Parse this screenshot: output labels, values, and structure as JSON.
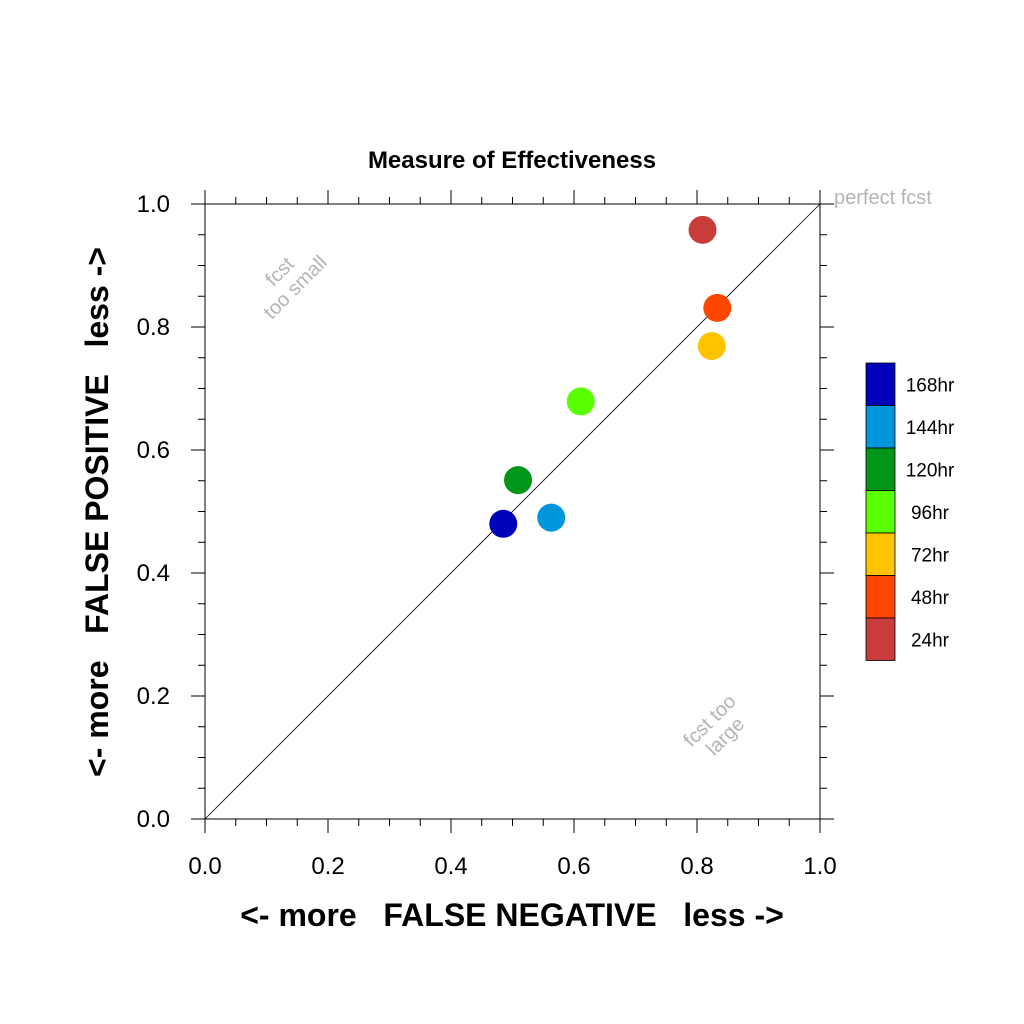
{
  "chart_data": {
    "type": "scatter",
    "title": "Measure of Effectiveness",
    "xlabel": "<- more   FALSE NEGATIVE   less ->",
    "ylabel": "<- more   FALSE POSITIVE   less ->",
    "xlim": [
      0.0,
      1.0
    ],
    "ylim": [
      0.0,
      1.0
    ],
    "xticks": [
      "0.0",
      "0.2",
      "0.4",
      "0.6",
      "0.8",
      "1.0"
    ],
    "yticks": [
      "0.0",
      "0.2",
      "0.4",
      "0.6",
      "0.8",
      "1.0"
    ],
    "grid": false,
    "reference_line": {
      "from": [
        0.0,
        0.0
      ],
      "to": [
        1.0,
        1.0
      ]
    },
    "annotations": {
      "perfect": "perfect fcst",
      "small_line1": "fcst",
      "small_line2": "too small",
      "large_line1": "fcst too",
      "large_line2": "large"
    },
    "legend_position": "right",
    "series": [
      {
        "name": "168hr",
        "color": "#0000bb",
        "x": 0.485,
        "y": 0.48
      },
      {
        "name": "144hr",
        "color": "#0096dc",
        "x": 0.563,
        "y": 0.49
      },
      {
        "name": "120hr",
        "color": "#009619",
        "x": 0.509,
        "y": 0.551
      },
      {
        "name": "96hr",
        "color": "#5aff00",
        "x": 0.611,
        "y": 0.679
      },
      {
        "name": "72hr",
        "color": "#ffc300",
        "x": 0.824,
        "y": 0.769
      },
      {
        "name": "48hr",
        "color": "#ff4600",
        "x": 0.833,
        "y": 0.831
      },
      {
        "name": "24hr",
        "color": "#c83c3c",
        "x": 0.809,
        "y": 0.958
      }
    ]
  }
}
